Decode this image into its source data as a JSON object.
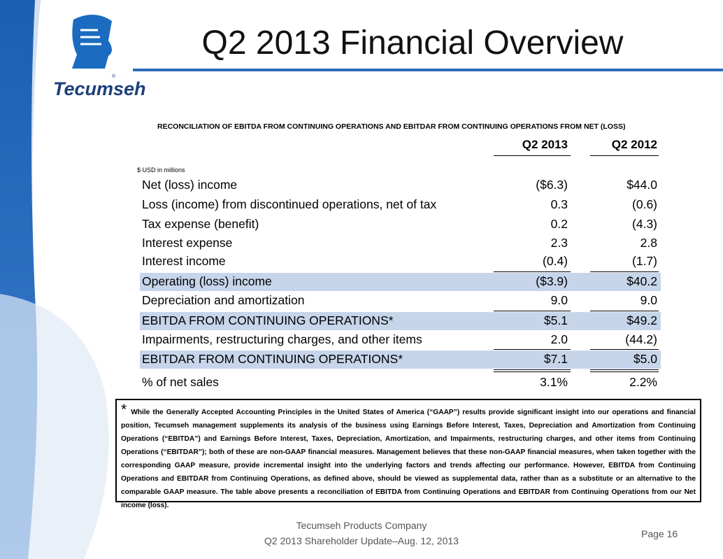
{
  "logo": {
    "text": "Tecumseh",
    "mark": "®"
  },
  "header": {
    "title": "Q2 2013 Financial Overview"
  },
  "table": {
    "title": "RECONCILIATION OF EBITDA FROM CONTINUING OPERATIONS AND EBITDAR FROM CONTINUING OPERATIONS FROM NET (LOSS)",
    "columns": [
      "Q2 2013",
      "Q2 2012"
    ],
    "unit_note": "$ USD in millions",
    "rows": [
      [
        "Net (loss) income",
        "($6.3)",
        "$44.0"
      ],
      [
        "Loss (income) from discontinued operations, net of tax",
        "0.3",
        "(0.6)"
      ],
      [
        "Tax expense (benefit)",
        "0.2",
        "(4.3)"
      ],
      [
        "Interest expense",
        "2.3",
        "2.8"
      ],
      [
        "Interest income",
        "(0.4)",
        "(1.7)"
      ],
      [
        "Operating (loss) income",
        "($3.9)",
        "$40.2"
      ],
      [
        "Depreciation and amortization",
        "9.0",
        "9.0"
      ],
      [
        "EBITDA FROM CONTINUING OPERATIONS*",
        "$5.1",
        "$49.2"
      ],
      [
        "Impairments, restructuring charges, and other items",
        "2.0",
        "(44.2)"
      ],
      [
        "EBITDAR FROM CONTINUING OPERATIONS*",
        "$7.1",
        "$5.0"
      ],
      [
        "% of net sales",
        "3.1%",
        "2.2%"
      ]
    ]
  },
  "footnote": {
    "marker": "*",
    "text": "While the Generally Accepted Accounting Principles in the United States of America (“GAAP”) results provide significant insight into our operations and financial position, Tecumseh management supplements its analysis of the business using Earnings Before Interest, Taxes, Depreciation and Amortization from Continuing Operations (“EBITDA”) and Earnings Before Interest, Taxes, Depreciation, Amortization, and Impairments, restructuring charges, and other items from Continuing Operations (“EBITDAR”); both of these are non-GAAP financial measures. Management believes that these non-GAAP financial measures, when taken together with the corresponding GAAP measure, provide incremental insight into the underlying factors and trends affecting our performance. However, EBITDA from Continuing Operations and EBITDAR from Continuing Operations, as defined above, should be viewed as supplemental data, rather than as a substitute or an alternative to the comparable GAAP measure. The table above presents a reconciliation of EBITDA from Continuing Operations and EBITDAR from Continuing Operations from our Net income (loss)."
  },
  "footer": {
    "company": "Tecumseh Products Company",
    "event": "Q2 2013 Shareholder Update–Aug. 12, 2013",
    "page": "Page 16"
  }
}
